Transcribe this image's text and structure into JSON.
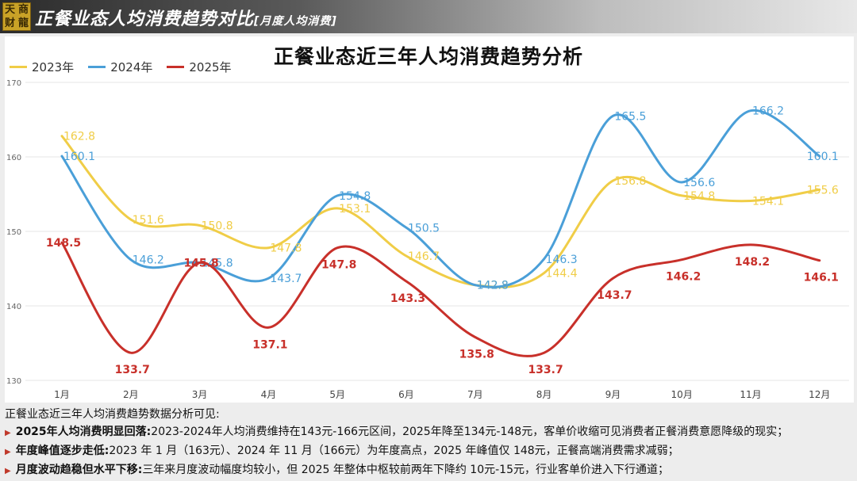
{
  "header": {
    "logo_chars": [
      "天",
      "商",
      "财",
      "龍"
    ],
    "title": "正餐业态人均消费趋势对比",
    "subtitle": "[月度人均消费]"
  },
  "chart_data": {
    "type": "line",
    "title": "正餐业态近三年人均消费趋势分析",
    "categories": [
      "1月",
      "2月",
      "3月",
      "4月",
      "5月",
      "6月",
      "7月",
      "8月",
      "9月",
      "10月",
      "11月",
      "12月"
    ],
    "ylim": [
      130,
      170
    ],
    "yticks": [
      130,
      140,
      150,
      160,
      170
    ],
    "legend_position": "top-left",
    "grid": true,
    "series": [
      {
        "name": "2023年",
        "color": "#f0cd47",
        "values": [
          162.8,
          151.6,
          150.8,
          147.8,
          153.1,
          146.7,
          142.8,
          144.4,
          156.8,
          154.8,
          154.1,
          155.6
        ]
      },
      {
        "name": "2024年",
        "color": "#4a9fd8",
        "values": [
          160.1,
          146.2,
          145.8,
          143.7,
          154.8,
          150.5,
          142.8,
          146.3,
          165.5,
          156.6,
          166.2,
          160.1
        ]
      },
      {
        "name": "2025年",
        "color": "#c8302a",
        "values": [
          148.5,
          133.7,
          145.8,
          137.1,
          147.8,
          143.3,
          135.8,
          133.7,
          143.7,
          146.2,
          148.2,
          146.1
        ]
      }
    ]
  },
  "notes": {
    "intro": "正餐业态近三年人均消费趋势数据分析可见:",
    "items": [
      {
        "bold": "2025年人均消费明显回落:",
        "text": "2023-2024年人均消费维持在143元-166元区间，2025年降至134元-148元，客单价收缩可见消费者正餐消费意愿降级的现实；"
      },
      {
        "bold": "年度峰值逐步走低:",
        "text": "2023 年 1 月（163元）、2024 年 11 月（166元）为年度高点，2025 年峰值仅 148元，正餐高端消费需求减弱；"
      },
      {
        "bold": "月度波动趋稳但水平下移:",
        "text": "三年来月度波动幅度均较小，但 2025 年整体中枢较前两年下降约 10元-15元，行业客单价进入下行通道；"
      }
    ]
  }
}
